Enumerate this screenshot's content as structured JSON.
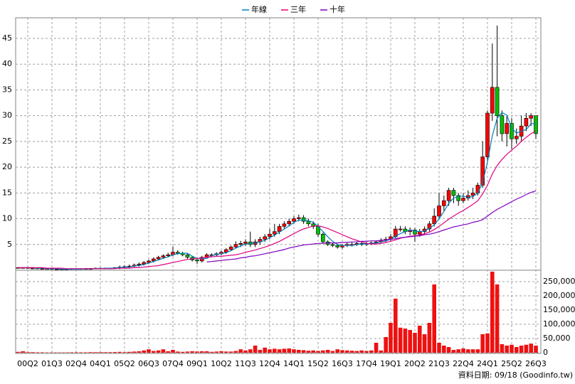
{
  "chart_data": {
    "type": "candlestick",
    "categories": [
      null,
      null,
      "00Q2",
      null,
      null,
      null,
      null,
      "01Q3",
      null,
      null,
      null,
      null,
      "02Q4",
      null,
      null,
      null,
      null,
      "04Q1",
      null,
      null,
      null,
      null,
      "05Q2",
      null,
      null,
      null,
      null,
      "06Q3",
      null,
      null,
      null,
      null,
      "07Q4",
      null,
      null,
      null,
      null,
      "09Q1",
      null,
      null,
      null,
      null,
      "10Q2",
      null,
      null,
      null,
      null,
      "11Q3",
      null,
      null,
      null,
      null,
      "12Q4",
      null,
      null,
      null,
      null,
      "14Q1",
      null,
      null,
      null,
      null,
      "15Q2",
      null,
      null,
      null,
      null,
      "16Q3",
      null,
      null,
      null,
      null,
      "17Q4",
      null,
      null,
      null,
      null,
      "19Q1",
      null,
      null,
      null,
      null,
      "20Q2",
      null,
      null,
      null,
      null,
      "21Q3",
      null,
      null,
      null,
      null,
      "22Q4",
      null,
      null,
      null,
      null,
      "24Q1",
      null,
      null,
      null,
      null,
      "25Q2",
      null,
      null,
      null,
      null,
      "26Q3"
    ],
    "open": [
      0.5,
      0.5,
      0.5,
      0.4,
      0.4,
      0.3,
      0.3,
      0.3,
      0.2,
      0.2,
      0.2,
      0.2,
      0.3,
      0.3,
      0.3,
      0.3,
      0.3,
      0.4,
      0.4,
      0.4,
      0.4,
      0.5,
      0.6,
      0.7,
      0.8,
      1.0,
      1.2,
      1.5,
      1.8,
      2.2,
      2.5,
      2.8,
      3.0,
      3.5,
      3.3,
      3.0,
      2.5,
      2.0,
      1.8,
      2.5,
      3.0,
      3.0,
      3.2,
      3.5,
      4.0,
      4.5,
      5.0,
      5.2,
      5.5,
      5.0,
      5.5,
      6.0,
      6.5,
      7.0,
      7.5,
      8.5,
      9.0,
      9.5,
      10.0,
      10.2,
      9.5,
      9.0,
      8.5,
      7.0,
      5.5,
      5.0,
      4.8,
      4.5,
      4.8,
      5.0,
      5.0,
      5.2,
      5.0,
      5.2,
      5.3,
      5.5,
      5.8,
      6.0,
      6.5,
      8.0,
      8.0,
      7.5,
      7.8,
      7.0,
      7.5,
      8.0,
      9.0,
      10.5,
      12.5,
      13.5,
      15.5,
      14.5,
      13.5,
      14.0,
      14.5,
      15.0,
      16.5,
      22.0,
      30.5,
      35.5,
      30.0,
      26.5,
      28.5,
      25.5,
      26.0,
      28.0,
      29.5,
      30.0
    ],
    "high": [
      0.6,
      0.6,
      0.6,
      0.5,
      0.5,
      0.4,
      0.4,
      0.4,
      0.3,
      0.3,
      0.3,
      0.4,
      0.4,
      0.4,
      0.4,
      0.4,
      0.5,
      0.5,
      0.5,
      0.5,
      0.6,
      0.9,
      1.0,
      1.1,
      1.3,
      1.5,
      1.8,
      2.1,
      2.5,
      2.8,
      3.1,
      3.4,
      4.6,
      3.9,
      3.6,
      3.3,
      2.8,
      2.3,
      2.8,
      3.3,
      3.3,
      3.5,
      3.8,
      4.3,
      4.8,
      5.6,
      5.7,
      6.0,
      7.5,
      6.0,
      6.5,
      7.0,
      8.0,
      9.0,
      9.0,
      9.5,
      10.0,
      10.5,
      10.8,
      10.7,
      10.0,
      9.5,
      9.0,
      7.3,
      5.8,
      5.3,
      5.1,
      5.1,
      5.3,
      5.4,
      5.5,
      5.5,
      5.5,
      5.6,
      5.8,
      6.2,
      6.5,
      7.0,
      8.6,
      8.6,
      8.5,
      8.3,
      8.2,
      8.0,
      8.5,
      9.5,
      12.0,
      15.0,
      14.5,
      16.0,
      16.0,
      15.0,
      15.0,
      15.5,
      16.0,
      17.0,
      25.0,
      31.0,
      44.0,
      47.5,
      31.0,
      30.0,
      29.5,
      27.5,
      30.0,
      30.5,
      30.5,
      30.0
    ],
    "low": [
      0.4,
      0.4,
      0.3,
      0.3,
      0.2,
      0.2,
      0.2,
      0.1,
      0.1,
      0.1,
      0.1,
      0.1,
      0.2,
      0.2,
      0.2,
      0.2,
      0.2,
      0.3,
      0.3,
      0.3,
      0.3,
      0.2,
      0.3,
      0.4,
      0.5,
      0.7,
      0.9,
      1.2,
      1.5,
      1.9,
      2.2,
      2.5,
      2.7,
      3.0,
      2.7,
      2.2,
      1.7,
      1.2,
      1.5,
      2.2,
      2.7,
      2.7,
      2.9,
      3.2,
      3.7,
      4.2,
      4.5,
      4.7,
      4.5,
      4.5,
      5.0,
      5.5,
      6.0,
      6.5,
      7.0,
      8.0,
      8.5,
      9.0,
      9.5,
      9.0,
      8.5,
      8.0,
      6.5,
      5.2,
      4.7,
      4.5,
      4.2,
      4.2,
      4.5,
      4.6,
      4.7,
      4.7,
      4.7,
      4.9,
      5.0,
      5.2,
      5.3,
      5.6,
      6.2,
      7.5,
      7.0,
      6.8,
      5.5,
      6.5,
      7.0,
      7.5,
      8.5,
      10.0,
      11.5,
      12.5,
      13.0,
      12.5,
      13.0,
      13.5,
      13.8,
      14.5,
      16.0,
      21.0,
      29.0,
      26.0,
      25.0,
      24.0,
      23.5,
      24.5,
      25.0,
      27.0,
      28.0,
      25.5
    ],
    "close": [
      0.5,
      0.5,
      0.4,
      0.4,
      0.3,
      0.3,
      0.3,
      0.2,
      0.2,
      0.2,
      0.2,
      0.3,
      0.3,
      0.3,
      0.3,
      0.3,
      0.4,
      0.4,
      0.4,
      0.4,
      0.5,
      0.6,
      0.7,
      0.8,
      1.0,
      1.2,
      1.5,
      1.8,
      2.2,
      2.5,
      2.8,
      3.0,
      3.5,
      3.3,
      3.0,
      2.5,
      2.0,
      1.8,
      2.5,
      3.0,
      3.0,
      3.2,
      3.5,
      4.0,
      4.5,
      5.0,
      5.2,
      5.5,
      5.0,
      5.5,
      6.0,
      6.5,
      7.0,
      7.5,
      8.5,
      9.0,
      9.5,
      10.0,
      10.2,
      9.5,
      9.0,
      8.5,
      7.0,
      5.5,
      5.0,
      4.8,
      4.5,
      4.8,
      5.0,
      5.0,
      5.2,
      5.0,
      5.2,
      5.3,
      5.5,
      5.8,
      6.0,
      6.5,
      8.0,
      8.0,
      7.5,
      7.8,
      7.0,
      7.5,
      8.0,
      9.0,
      10.5,
      12.5,
      13.5,
      15.5,
      14.5,
      13.5,
      14.0,
      14.5,
      15.0,
      16.5,
      22.0,
      30.5,
      35.5,
      30.0,
      26.5,
      28.5,
      25.5,
      26.0,
      28.0,
      29.5,
      30.0,
      26.5
    ],
    "up_color": "#ff0000",
    "down_color": "#00c000",
    "series": [
      {
        "name": "年線",
        "color": "#0080c0",
        "values": [
          0.5,
          0.5,
          0.5,
          0.5,
          0.4,
          0.4,
          0.3,
          0.3,
          0.3,
          0.2,
          0.2,
          0.2,
          0.2,
          0.2,
          0.3,
          0.3,
          0.3,
          0.3,
          0.4,
          0.4,
          0.4,
          0.5,
          0.6,
          0.6,
          0.8,
          0.9,
          1.1,
          1.4,
          1.7,
          2.0,
          2.3,
          2.6,
          3.0,
          3.2,
          3.3,
          3.3,
          2.7,
          2.3,
          2.2,
          2.3,
          2.8,
          3.1,
          3.2,
          3.4,
          3.8,
          4.3,
          4.7,
          5.1,
          5.2,
          5.3,
          5.5,
          5.8,
          6.3,
          6.8,
          7.4,
          8.0,
          8.6,
          9.3,
          9.7,
          9.8,
          9.6,
          9.3,
          8.5,
          7.5,
          6.5,
          5.6,
          5.0,
          4.8,
          4.8,
          4.8,
          5.0,
          5.1,
          5.1,
          5.2,
          5.3,
          5.5,
          5.7,
          6.0,
          6.6,
          7.1,
          7.5,
          7.8,
          7.6,
          7.5,
          7.6,
          8.1,
          8.8,
          10.0,
          11.4,
          13.0,
          14.0,
          14.3,
          14.4,
          14.1,
          14.3,
          15.0,
          17.0,
          21.0,
          26.1,
          29.5,
          30.6,
          30.1,
          27.6,
          26.6,
          27.0,
          27.3,
          28.4,
          28.5
        ]
      },
      {
        "name": "三年",
        "color": "#e0007f",
        "values": [
          0.5,
          0.5,
          0.5,
          0.5,
          0.5,
          0.5,
          0.4,
          0.4,
          0.4,
          0.4,
          0.3,
          0.3,
          0.3,
          0.3,
          0.3,
          0.3,
          0.3,
          0.3,
          0.3,
          0.3,
          0.3,
          0.4,
          0.4,
          0.4,
          0.5,
          0.5,
          0.6,
          0.7,
          0.8,
          0.9,
          1.1,
          1.3,
          1.5,
          1.7,
          1.9,
          2.1,
          2.2,
          2.3,
          2.4,
          2.5,
          2.6,
          2.7,
          2.7,
          2.8,
          2.9,
          3.0,
          3.2,
          3.5,
          3.7,
          3.9,
          4.2,
          4.5,
          4.8,
          5.2,
          5.6,
          6.1,
          6.6,
          7.1,
          7.6,
          8.0,
          8.3,
          8.6,
          8.6,
          8.4,
          8.1,
          7.7,
          7.3,
          6.9,
          6.5,
          6.1,
          5.8,
          5.5,
          5.2,
          5.1,
          5.1,
          5.2,
          5.4,
          5.6,
          5.9,
          6.2,
          6.4,
          6.6,
          6.7,
          6.8,
          7.1,
          7.4,
          7.9,
          8.5,
          9.2,
          9.9,
          10.5,
          11.1,
          11.6,
          12.2,
          12.8,
          13.5,
          14.8,
          16.5,
          18.7,
          20.3,
          21.5,
          22.5,
          23.3,
          24.1,
          25.0,
          25.8,
          26.5,
          27.0
        ]
      },
      {
        "name": "十年",
        "color": "#8000c0",
        "values": [
          null,
          null,
          null,
          null,
          null,
          null,
          null,
          null,
          null,
          null,
          null,
          null,
          null,
          null,
          null,
          null,
          null,
          null,
          null,
          null,
          null,
          null,
          null,
          null,
          null,
          null,
          null,
          null,
          null,
          null,
          null,
          null,
          null,
          null,
          null,
          null,
          null,
          null,
          null,
          1.6,
          1.7,
          1.8,
          1.9,
          2.0,
          2.1,
          2.2,
          2.4,
          2.5,
          2.7,
          2.8,
          3.0,
          3.2,
          3.4,
          3.6,
          3.8,
          4.0,
          4.3,
          4.5,
          4.7,
          4.9,
          5.0,
          5.1,
          5.2,
          5.2,
          5.3,
          5.3,
          5.3,
          5.4,
          5.4,
          5.5,
          5.5,
          5.6,
          5.6,
          5.7,
          5.7,
          5.8,
          5.9,
          6.0,
          6.1,
          6.3,
          6.4,
          6.5,
          6.6,
          6.7,
          6.9,
          7.0,
          7.2,
          7.5,
          7.8,
          8.1,
          8.4,
          8.6,
          8.8,
          9.0,
          9.3,
          9.5,
          9.8,
          10.5,
          11.2,
          11.8,
          12.3,
          12.8,
          13.3,
          13.8,
          14.2,
          14.7,
          15.1,
          15.4
        ]
      }
    ],
    "ylim": [
      0,
      49
    ],
    "yticks": [
      5,
      10,
      15,
      20,
      25,
      30,
      35,
      40,
      45
    ],
    "volume": [
      3000,
      5000,
      2000,
      2000,
      1500,
      1500,
      1000,
      1000,
      1000,
      1000,
      1000,
      1500,
      1500,
      1500,
      1500,
      2000,
      2000,
      2000,
      2000,
      2000,
      2500,
      3000,
      2000,
      3000,
      4000,
      5000,
      8000,
      12000,
      6000,
      8000,
      12000,
      5000,
      10000,
      4000,
      3000,
      4000,
      5000,
      4000,
      5000,
      5000,
      3000,
      4000,
      5000,
      4000,
      4000,
      6000,
      12000,
      8000,
      12000,
      25000,
      10000,
      18000,
      12000,
      14000,
      12000,
      14000,
      15000,
      12000,
      10000,
      9000,
      7000,
      8000,
      6000,
      8000,
      10000,
      6000,
      12000,
      9000,
      8000,
      7000,
      6000,
      8000,
      6000,
      8000,
      35000,
      8000,
      55000,
      105000,
      190000,
      88000,
      85000,
      80000,
      70000,
      95000,
      65000,
      105000,
      240000,
      35000,
      25000,
      20000,
      10000,
      12000,
      15000,
      12000,
      12000,
      12000,
      65000,
      68000,
      285000,
      240000,
      30000,
      25000,
      28000,
      20000,
      25000,
      28000,
      32000,
      25000
    ],
    "volume_color": "#ee1111",
    "y2lim": [
      0,
      290000
    ],
    "y2ticks": [
      0,
      {
        "value": 50000,
        "label": "50,000"
      },
      {
        "value": 100000,
        "label": "100,000"
      },
      {
        "value": 150000,
        "label": "150,000"
      },
      {
        "value": 200000,
        "label": "200,000"
      },
      {
        "value": 250000,
        "label": "250,000"
      }
    ],
    "grid": true,
    "source": "資料日期: 09/18 (Goodinfo.tw)"
  }
}
